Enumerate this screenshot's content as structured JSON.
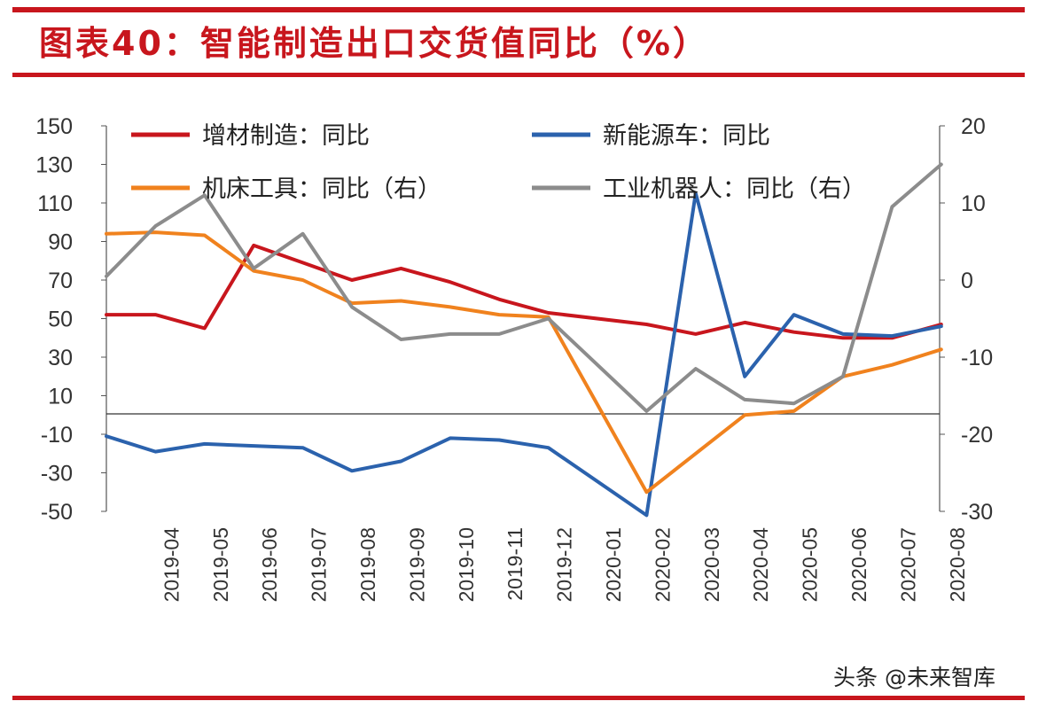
{
  "title": "图表40：智能制造出口交货值同比（%）",
  "watermark": "头条 @未来智库",
  "chart_data": {
    "type": "line",
    "title": "图表40：智能制造出口交货值同比（%）",
    "categories": [
      "2019-04",
      "2019-05",
      "2019-06",
      "2019-07",
      "2019-08",
      "2019-09",
      "2019-10",
      "2019-11",
      "2019-12",
      "2020-01",
      "2020-02",
      "2020-03",
      "2020-04",
      "2020-05",
      "2020-06",
      "2020-07",
      "2020-08"
    ],
    "left_axis": {
      "ylim": [
        -50,
        150
      ],
      "ticks": [
        "150",
        "130",
        "110",
        "90",
        "70",
        "50",
        "30",
        "10",
        "-10",
        "-30",
        "-50"
      ]
    },
    "right_axis": {
      "ylim": [
        -30,
        20
      ],
      "ticks": [
        "20",
        "10",
        "0",
        "-10",
        "-20",
        "-30"
      ]
    },
    "legend": [
      {
        "label": "增材制造：同比",
        "series": 0
      },
      {
        "label": "新能源车：同比",
        "series": 1
      },
      {
        "label": "机床工具：同比（右）",
        "series": 2
      },
      {
        "label": "工业机器人：同比（右）",
        "series": 3
      }
    ],
    "legend_placement": "top",
    "grid": false,
    "series": [
      {
        "name": "增材制造：同比",
        "axis": "left",
        "color": "#c8161d",
        "x": [
          "2019-03",
          "2019-04",
          "2019-05",
          "2019-06",
          "2019-07",
          "2019-08",
          "2019-09",
          "2019-10",
          "2019-11",
          "2019-12",
          "2020-02",
          "2020-03",
          "2020-04",
          "2020-05",
          "2020-06",
          "2020-07",
          "2020-08"
        ],
        "values": [
          52,
          52,
          45,
          88,
          79,
          70,
          76,
          69,
          60,
          53,
          47,
          42,
          48,
          43,
          40,
          40,
          47
        ]
      },
      {
        "name": "新能源车：同比",
        "axis": "left",
        "color": "#2b62ad",
        "x": [
          "2019-03",
          "2019-04",
          "2019-05",
          "2019-06",
          "2019-07",
          "2019-08",
          "2019-09",
          "2019-10",
          "2019-11",
          "2019-12",
          "2020-02",
          "2020-03",
          "2020-04",
          "2020-05",
          "2020-06",
          "2020-07",
          "2020-08"
        ],
        "values": [
          -11,
          -19,
          -15,
          -16,
          -17,
          -29,
          -24,
          -12,
          -13,
          -17,
          -52,
          115,
          20,
          52,
          42,
          41,
          46
        ]
      },
      {
        "name": "机床工具：同比（右）",
        "axis": "right",
        "color": "#f0821e",
        "x": [
          "2019-03",
          "2019-04",
          "2019-05",
          "2019-06",
          "2019-07",
          "2019-08",
          "2019-09",
          "2019-10",
          "2019-11",
          "2019-12",
          "2020-02",
          "2020-03",
          "2020-04",
          "2020-05",
          "2020-06",
          "2020-07",
          "2020-08"
        ],
        "values": [
          6,
          6.2,
          5.8,
          1.2,
          0,
          -3,
          -2.7,
          -3.5,
          -4.5,
          -4.8,
          -27.5,
          -22.5,
          -17.5,
          -17,
          -12.5,
          -11,
          -9
        ]
      },
      {
        "name": "工业机器人：同比（右）",
        "axis": "right",
        "color": "#8c8c8c",
        "x": [
          "2019-03",
          "2019-04",
          "2019-05",
          "2019-06",
          "2019-07",
          "2019-08",
          "2019-09",
          "2019-10",
          "2019-11",
          "2019-12",
          "2020-02",
          "2020-03",
          "2020-04",
          "2020-05",
          "2020-06",
          "2020-07",
          "2020-08"
        ],
        "values": [
          0.5,
          7,
          11,
          1.5,
          6,
          -3.5,
          -7.7,
          -7,
          -7,
          -5,
          -17,
          -11.5,
          -15.5,
          -16,
          -12.5,
          9.5,
          15
        ]
      }
    ]
  }
}
